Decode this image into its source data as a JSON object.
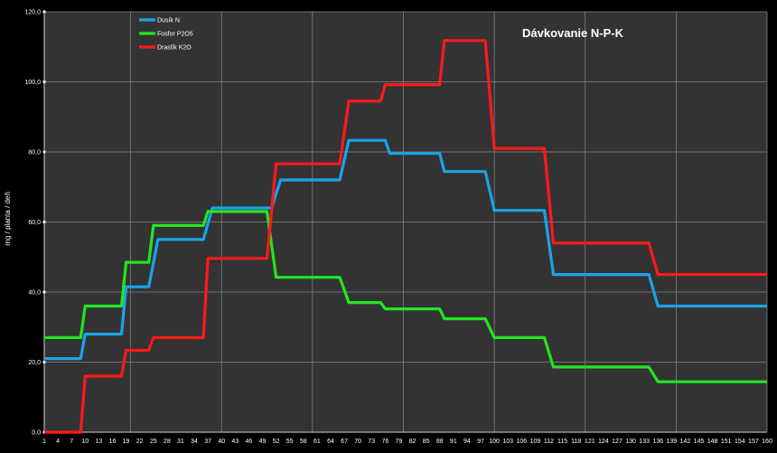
{
  "chart_data": {
    "type": "line",
    "title": "Dávkovanie N-P-K",
    "ylabel": "mg / planta / deň",
    "xlabel": "",
    "ylim": [
      0,
      120
    ],
    "y_ticks": [
      "0,0",
      "20,0",
      "40,0",
      "60,0",
      "80,0",
      "100,0",
      "120,0"
    ],
    "x_ticks": [
      "1",
      "4",
      "7",
      "10",
      "13",
      "16",
      "19",
      "22",
      "25",
      "28",
      "31",
      "34",
      "37",
      "40",
      "43",
      "46",
      "49",
      "52",
      "55",
      "58",
      "61",
      "64",
      "67",
      "70",
      "73",
      "76",
      "79",
      "82",
      "85",
      "88",
      "91",
      "94",
      "97",
      "100",
      "103",
      "106",
      "109",
      "112",
      "115",
      "118",
      "121",
      "124",
      "127",
      "130",
      "133",
      "136",
      "139",
      "142",
      "145",
      "148",
      "151",
      "154",
      "157",
      "160"
    ],
    "xlim": [
      1,
      160
    ],
    "grid": true,
    "legend_position": "top-left",
    "series": [
      {
        "name": "Dusík  N",
        "color": "#1aa3e8",
        "points": [
          [
            1,
            21
          ],
          [
            9,
            21
          ],
          [
            10,
            28
          ],
          [
            18,
            28
          ],
          [
            19,
            41.5
          ],
          [
            24,
            41.5
          ],
          [
            26,
            55
          ],
          [
            36,
            55
          ],
          [
            38,
            64
          ],
          [
            51,
            64
          ],
          [
            53,
            72
          ],
          [
            66,
            72
          ],
          [
            68,
            83.3
          ],
          [
            76,
            83.3
          ],
          [
            77,
            79.6
          ],
          [
            88,
            79.6
          ],
          [
            89,
            74.4
          ],
          [
            98,
            74.4
          ],
          [
            100,
            63.3
          ],
          [
            111,
            63.3
          ],
          [
            113,
            45
          ],
          [
            134,
            45
          ],
          [
            136,
            36
          ],
          [
            160,
            36
          ]
        ]
      },
      {
        "name": "Fosfor P2O5",
        "color": "#22e622",
        "points": [
          [
            1,
            27
          ],
          [
            9,
            27
          ],
          [
            10,
            36
          ],
          [
            18,
            36
          ],
          [
            19,
            48.5
          ],
          [
            24,
            48.5
          ],
          [
            25,
            59
          ],
          [
            36,
            59
          ],
          [
            37,
            63
          ],
          [
            50,
            63
          ],
          [
            52,
            44.2
          ],
          [
            66,
            44.2
          ],
          [
            68,
            37
          ],
          [
            75,
            37
          ],
          [
            76,
            35.2
          ],
          [
            88,
            35.2
          ],
          [
            89,
            32.4
          ],
          [
            98,
            32.4
          ],
          [
            100,
            27
          ],
          [
            111,
            27
          ],
          [
            113,
            18.6
          ],
          [
            134,
            18.6
          ],
          [
            136,
            14.4
          ],
          [
            160,
            14.4
          ]
        ]
      },
      {
        "name": "Draslík K2O",
        "color": "#ff1a1a",
        "points": [
          [
            1,
            0
          ],
          [
            9,
            0
          ],
          [
            10,
            16
          ],
          [
            18,
            16
          ],
          [
            19,
            23.4
          ],
          [
            24,
            23.4
          ],
          [
            25,
            27
          ],
          [
            36,
            27
          ],
          [
            37,
            49.6
          ],
          [
            50,
            49.6
          ],
          [
            52,
            76.6
          ],
          [
            66,
            76.6
          ],
          [
            68,
            94.5
          ],
          [
            75,
            94.5
          ],
          [
            76,
            99.2
          ],
          [
            88,
            99.2
          ],
          [
            89,
            111.8
          ],
          [
            98,
            111.8
          ],
          [
            100,
            81
          ],
          [
            111,
            81
          ],
          [
            113,
            54
          ],
          [
            134,
            54
          ],
          [
            136,
            45
          ],
          [
            160,
            45
          ]
        ]
      }
    ]
  }
}
